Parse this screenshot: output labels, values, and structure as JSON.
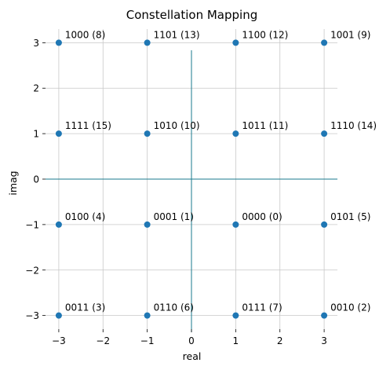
{
  "chart_data": {
    "type": "scatter",
    "title": "Constellation Mapping",
    "xlabel": "real",
    "ylabel": "imag",
    "xlim": [
      -3.3,
      3.3
    ],
    "ylim": [
      -3.3,
      3.3
    ],
    "xticks": [
      -3,
      -2,
      -1,
      0,
      1,
      2,
      3
    ],
    "yticks": [
      -3,
      -2,
      -1,
      0,
      1,
      2,
      3
    ],
    "xtick_labels": [
      "−3",
      "−2",
      "−1",
      "0",
      "1",
      "2",
      "3"
    ],
    "ytick_labels": [
      "−3",
      "−2",
      "−1",
      "0",
      "1",
      "2",
      "3"
    ],
    "grid": true,
    "axis_lines_at_zero": true,
    "colors": {
      "marker": "#1f77b4",
      "zero_axis": "#1a7a8c",
      "grid": "#c8c8c8"
    },
    "points": [
      {
        "x": -3,
        "y": 3,
        "label": "1000 (8)"
      },
      {
        "x": -1,
        "y": 3,
        "label": "1101 (13)"
      },
      {
        "x": 1,
        "y": 3,
        "label": "1100 (12)"
      },
      {
        "x": 3,
        "y": 3,
        "label": "1001 (9)"
      },
      {
        "x": -3,
        "y": 1,
        "label": "1111 (15)"
      },
      {
        "x": -1,
        "y": 1,
        "label": "1010 (10)"
      },
      {
        "x": 1,
        "y": 1,
        "label": "1011 (11)"
      },
      {
        "x": 3,
        "y": 1,
        "label": "1110 (14)"
      },
      {
        "x": -3,
        "y": -1,
        "label": "0100 (4)"
      },
      {
        "x": -1,
        "y": -1,
        "label": "0001 (1)"
      },
      {
        "x": 1,
        "y": -1,
        "label": "0000 (0)"
      },
      {
        "x": 3,
        "y": -1,
        "label": "0101 (5)"
      },
      {
        "x": -3,
        "y": -3,
        "label": "0011 (3)"
      },
      {
        "x": -1,
        "y": -3,
        "label": "0110 (6)"
      },
      {
        "x": 1,
        "y": -3,
        "label": "0111 (7)"
      },
      {
        "x": 3,
        "y": -3,
        "label": "0010 (2)"
      }
    ]
  }
}
